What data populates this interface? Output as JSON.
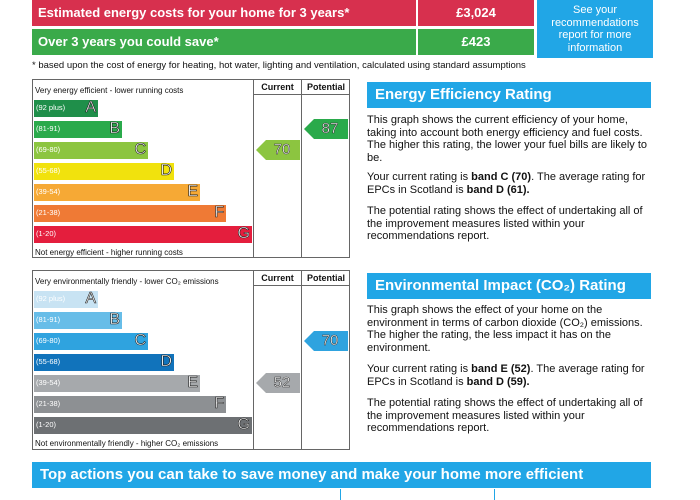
{
  "costs": {
    "row1_label": "Estimated energy costs for your home for 3 years*",
    "row1_value": "£3,024",
    "row1_color": "#d7304e",
    "row2_label": "Over 3 years you could save*",
    "row2_value": "£423",
    "row2_color": "#3aaa4a",
    "see_text": "See your recommendations report for more information",
    "footnote": "* based upon the cost of energy for heating, hot water, lighting and ventilation, calculated using standard assumptions"
  },
  "energy_chart": {
    "top_caption": "Very energy efficient - lower running costs",
    "bottom_caption": "Not energy efficient - higher running costs",
    "col_current": "Current",
    "col_potential": "Potential",
    "bands": [
      {
        "range": "(92 plus)",
        "letter": "A",
        "color": "#1f8f4a"
      },
      {
        "range": "(81-91)",
        "letter": "B",
        "color": "#2aaa4b"
      },
      {
        "range": "(69-80)",
        "letter": "C",
        "color": "#8cc540"
      },
      {
        "range": "(55-68)",
        "letter": "D",
        "color": "#f1e20d"
      },
      {
        "range": "(39-54)",
        "letter": "E",
        "color": "#f6a935"
      },
      {
        "range": "(21-38)",
        "letter": "F",
        "color": "#ef7a35"
      },
      {
        "range": "(1-20)",
        "letter": "G",
        "color": "#e41e3d"
      }
    ],
    "current": "70",
    "current_color": "#8cc540",
    "potential": "87",
    "potential_color": "#2aaa4b"
  },
  "env_chart": {
    "top_caption": "Very environmentally friendly - lower CO₂ emissions",
    "bottom_caption": "Not environmentally friendly - higher CO₂ emissions",
    "col_current": "Current",
    "col_potential": "Potential",
    "bands": [
      {
        "range": "(92 plus)",
        "letter": "A",
        "color": "#c8e3f3"
      },
      {
        "range": "(81-91)",
        "letter": "B",
        "color": "#67bde8"
      },
      {
        "range": "(69-80)",
        "letter": "C",
        "color": "#2fa3df"
      },
      {
        "range": "(55-68)",
        "letter": "D",
        "color": "#1173bb"
      },
      {
        "range": "(39-54)",
        "letter": "E",
        "color": "#a6a9ac"
      },
      {
        "range": "(21-38)",
        "letter": "F",
        "color": "#8d9093"
      },
      {
        "range": "(1-20)",
        "letter": "G",
        "color": "#6d7073"
      }
    ],
    "current": "52",
    "current_color": "#a6a9ac",
    "potential": "70",
    "potential_color": "#2fa3df"
  },
  "energy_panel": {
    "title": "Energy Efficiency Rating",
    "p1": "This graph shows the current efficiency of your home, taking into account both energy efficiency and fuel costs. The higher this rating, the lower your fuel bills are likely to be.",
    "p2_a": "Your current rating is ",
    "p2_bold1": "band C (70)",
    "p2_b": ". The average rating for EPCs in Scotland is ",
    "p2_bold2": "band D (61).",
    "p3": "The potential rating shows the effect of undertaking all of the improvement measures listed within your recommendations report."
  },
  "env_panel": {
    "title": "Environmental Impact (CO₂) Rating",
    "p1": "This graph shows the effect of your home on the environment in terms of carbon dioxide (CO₂) emissions. The higher the rating, the less impact it has on the environment.",
    "p2_a": "Your current rating is ",
    "p2_bold1": "band E (52)",
    "p2_b": ". The average rating for EPCs in Scotland is ",
    "p2_bold2": "band D (59).",
    "p3": "The potential rating shows the effect of undertaking all of the improvement measures listed within your recommendations report."
  },
  "bottom_banner": "Top actions you can take to save money and make your home more efficient"
}
